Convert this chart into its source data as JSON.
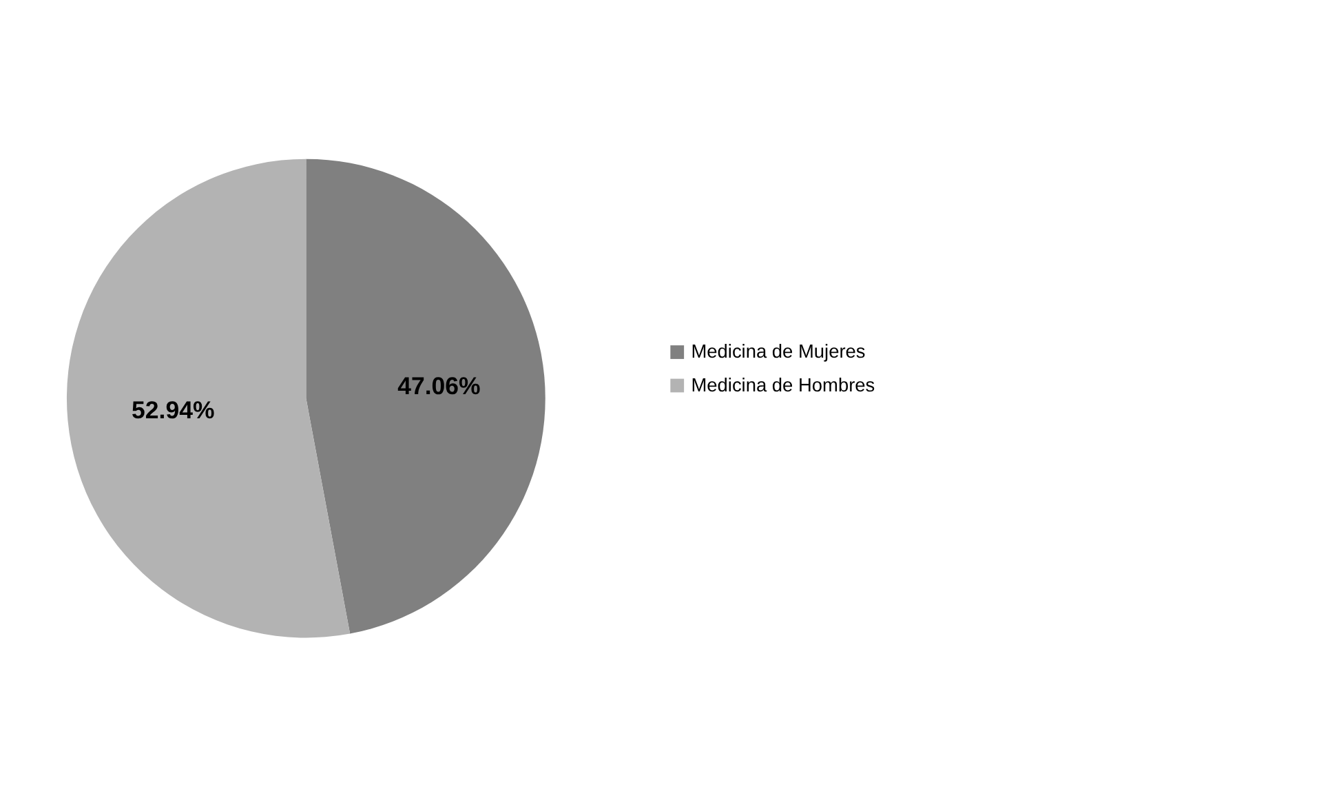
{
  "chart_data": {
    "type": "pie",
    "categories": [
      "Medicina de Mujeres",
      "Medicina de Hombres"
    ],
    "values": [
      47.06,
      52.94
    ],
    "colors": [
      "#808080",
      "#b3b3b3"
    ],
    "value_labels": [
      "47.06%",
      "52.94%"
    ],
    "legend": "right"
  }
}
